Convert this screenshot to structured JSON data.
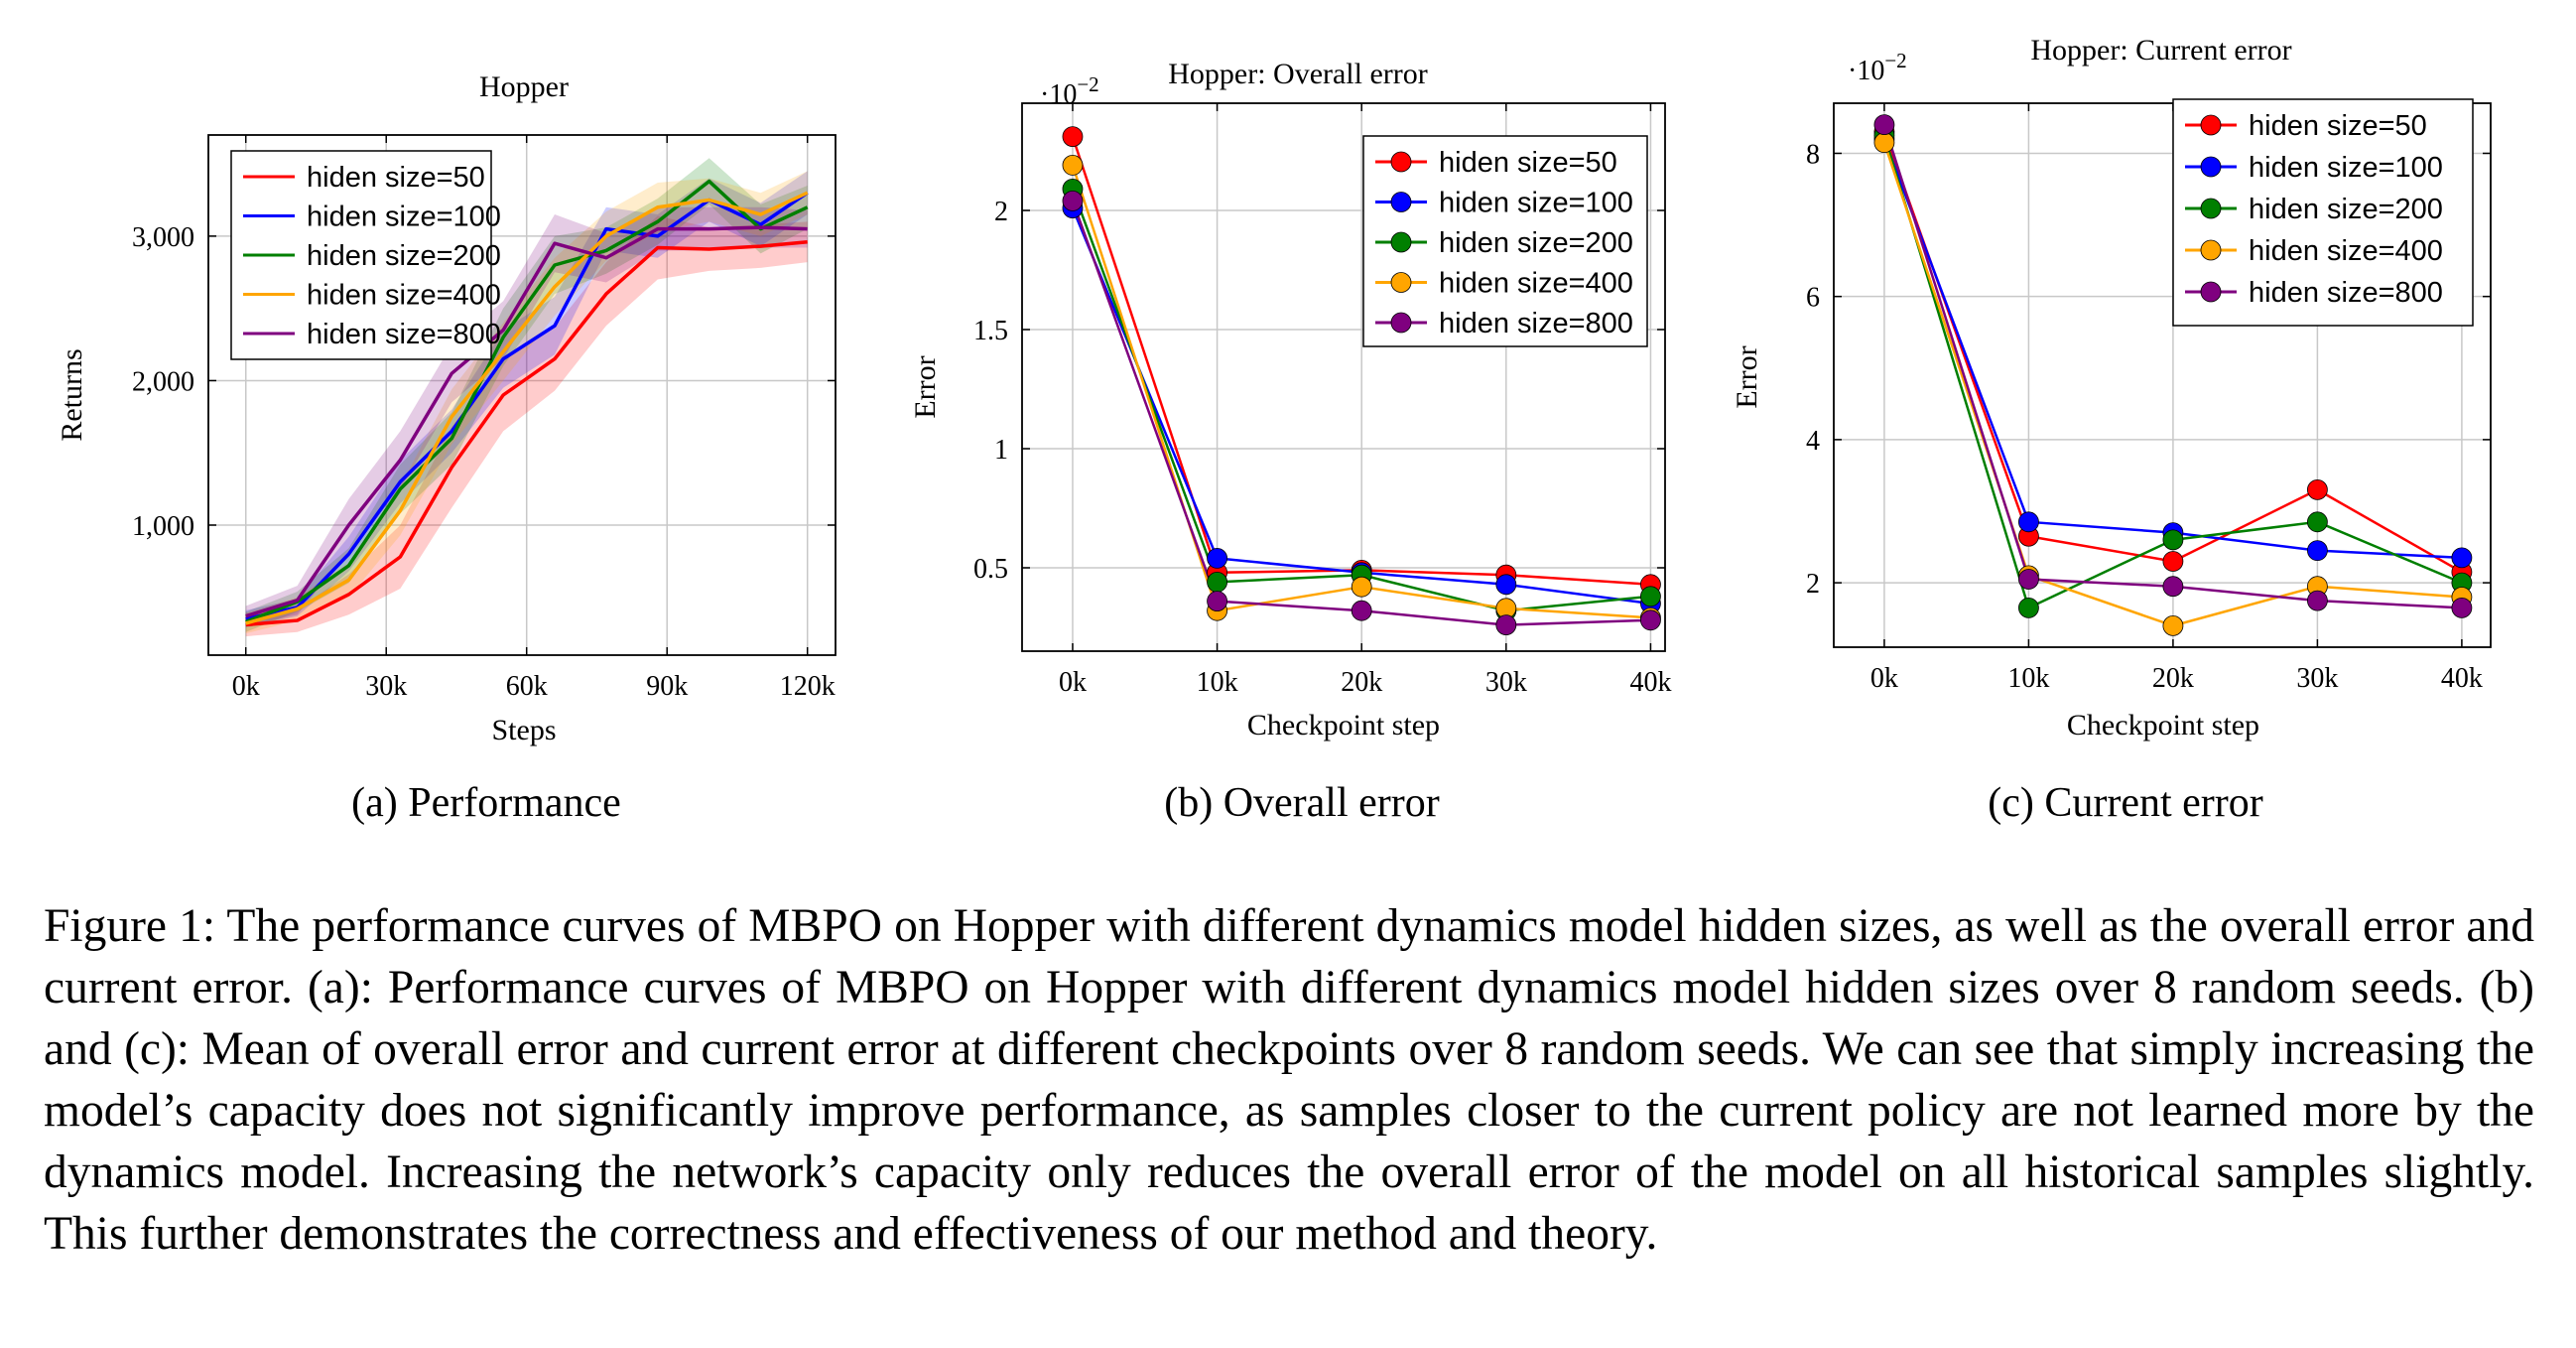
{
  "chart_data": [
    {
      "type": "line",
      "title": "Hopper",
      "xlabel": "Steps",
      "ylabel": "Returns",
      "subcaption": "(a) Performance",
      "xlim": [
        -8000,
        126000
      ],
      "ylim": [
        100,
        3700
      ],
      "xticks": [
        0,
        30000,
        60000,
        90000,
        120000
      ],
      "xticklabels": [
        "0k",
        "30k",
        "60k",
        "90k",
        "120k"
      ],
      "yticks": [
        1000,
        2000,
        3000
      ],
      "yticklabels": [
        "1,000",
        "2,000",
        "3,000"
      ],
      "grid": true,
      "legend_position": "top-left",
      "x": [
        0,
        11000,
        22000,
        33000,
        44000,
        55000,
        66000,
        77000,
        88000,
        99000,
        110000,
        120000
      ],
      "series": [
        {
          "name": "hiden size=50",
          "color": "#ff0000",
          "values": [
            310,
            340,
            520,
            780,
            1400,
            1900,
            2150,
            2600,
            2920,
            2910,
            2930,
            2960
          ],
          "lower": [
            230,
            260,
            380,
            560,
            1120,
            1650,
            1930,
            2380,
            2700,
            2760,
            2780,
            2820
          ],
          "upper": [
            390,
            420,
            660,
            1000,
            1680,
            2150,
            2370,
            2820,
            3140,
            3060,
            3080,
            3100
          ]
        },
        {
          "name": "hiden size=100",
          "color": "#0000ff",
          "values": [
            350,
            430,
            800,
            1300,
            1650,
            2150,
            2380,
            3050,
            3000,
            3250,
            3080,
            3300
          ],
          "lower": [
            290,
            370,
            680,
            1150,
            1500,
            1950,
            2180,
            2900,
            2850,
            3100,
            2930,
            3150
          ],
          "upper": [
            410,
            490,
            920,
            1450,
            1800,
            2350,
            2580,
            3200,
            3150,
            3400,
            3230,
            3450
          ]
        },
        {
          "name": "hiden size=200",
          "color": "#007f00",
          "values": [
            330,
            470,
            720,
            1250,
            1600,
            2300,
            2800,
            2900,
            3100,
            3380,
            3050,
            3200
          ],
          "lower": [
            260,
            400,
            600,
            1080,
            1420,
            2100,
            2600,
            2740,
            2940,
            3220,
            2880,
            3050
          ],
          "upper": [
            400,
            540,
            840,
            1420,
            1780,
            2500,
            3000,
            3060,
            3260,
            3540,
            3220,
            3350
          ]
        },
        {
          "name": "hiden size=400",
          "color": "#ffa500",
          "values": [
            320,
            420,
            620,
            1100,
            1750,
            2200,
            2650,
            3000,
            3200,
            3250,
            3150,
            3300
          ],
          "lower": [
            250,
            340,
            500,
            930,
            1560,
            2000,
            2450,
            2830,
            3030,
            3100,
            3000,
            3150
          ],
          "upper": [
            390,
            500,
            740,
            1270,
            1940,
            2400,
            2850,
            3170,
            3370,
            3400,
            3300,
            3450
          ]
        },
        {
          "name": "hiden size=800",
          "color": "#7f007f",
          "values": [
            370,
            480,
            1000,
            1450,
            2050,
            2350,
            2950,
            2850,
            3050,
            3050,
            3060,
            3050
          ],
          "lower": [
            300,
            380,
            820,
            1250,
            1850,
            2150,
            2750,
            2680,
            2900,
            2900,
            2920,
            2920
          ],
          "upper": [
            440,
            580,
            1180,
            1650,
            2250,
            2550,
            3150,
            3020,
            3200,
            3200,
            3200,
            3180
          ]
        }
      ]
    },
    {
      "type": "line",
      "title": "Hopper: Overall error",
      "xlabel": "Checkpoint step",
      "ylabel": "Error",
      "subcaption": "(b) Overall error",
      "multiplier": "·10",
      "multiplier_exp": "−2",
      "xlim": [
        -0.35,
        4.1
      ],
      "ylim": [
        0.15,
        2.45
      ],
      "xticks": [
        0,
        1,
        2,
        3,
        4
      ],
      "xticklabels": [
        "0k",
        "10k",
        "20k",
        "30k",
        "40k"
      ],
      "yticks": [
        0.5,
        1,
        1.5,
        2
      ],
      "yticklabels": [
        "0.5",
        "1",
        "1.5",
        "2"
      ],
      "grid": true,
      "legend_position": "top-right",
      "x": [
        0,
        1,
        2,
        3,
        4
      ],
      "series": [
        {
          "name": "hiden size=50",
          "color": "#ff0000",
          "values": [
            2.31,
            0.48,
            0.49,
            0.47,
            0.43
          ]
        },
        {
          "name": "hiden size=100",
          "color": "#0000ff",
          "values": [
            2.01,
            0.54,
            0.48,
            0.43,
            0.35
          ]
        },
        {
          "name": "hiden size=200",
          "color": "#007f00",
          "values": [
            2.09,
            0.44,
            0.47,
            0.32,
            0.38
          ]
        },
        {
          "name": "hiden size=400",
          "color": "#ffa500",
          "values": [
            2.19,
            0.32,
            0.42,
            0.33,
            0.29
          ]
        },
        {
          "name": "hiden size=800",
          "color": "#7f007f",
          "values": [
            2.04,
            0.36,
            0.32,
            0.26,
            0.28
          ]
        }
      ]
    },
    {
      "type": "line",
      "title": "Hopper: Current error",
      "xlabel": "Checkpoint step",
      "ylabel": "Error",
      "subcaption": "(c) Current error",
      "multiplier": "·10",
      "multiplier_exp": "−2",
      "xlim": [
        -0.35,
        4.2
      ],
      "ylim": [
        1.1,
        8.7
      ],
      "xticks": [
        0,
        1,
        2,
        3,
        4
      ],
      "xticklabels": [
        "0k",
        "10k",
        "20k",
        "30k",
        "40k"
      ],
      "yticks": [
        2,
        4,
        6,
        8
      ],
      "yticklabels": [
        "2",
        "4",
        "6",
        "8"
      ],
      "grid": true,
      "legend_position": "top-right",
      "x": [
        0,
        1,
        2,
        3,
        4
      ],
      "series": [
        {
          "name": "hiden size=50",
          "color": "#ff0000",
          "values": [
            8.3,
            2.65,
            2.3,
            3.3,
            2.15
          ]
        },
        {
          "name": "hiden size=100",
          "color": "#0000ff",
          "values": [
            8.2,
            2.85,
            2.7,
            2.45,
            2.35
          ]
        },
        {
          "name": "hiden size=200",
          "color": "#007f00",
          "values": [
            8.25,
            1.65,
            2.6,
            2.85,
            2.0
          ]
        },
        {
          "name": "hiden size=400",
          "color": "#ffa500",
          "values": [
            8.15,
            2.1,
            1.4,
            1.95,
            1.8
          ]
        },
        {
          "name": "hiden size=800",
          "color": "#7f007f",
          "values": [
            8.4,
            2.05,
            1.95,
            1.75,
            1.65
          ]
        }
      ]
    }
  ],
  "caption": {
    "text": "Figure 1: The performance curves of MBPO on Hopper with different dynamics model hidden sizes, as well as the overall error and current error. (a): Performance curves of MBPO on Hopper with different dynamics model hidden sizes over 8 random seeds. (b) and (c): Mean of overall error and current error at different checkpoints over 8 random seeds. We can see that simply increasing the model’s capacity does not significantly improve performance, as samples closer to the current policy are not learned more by the dynamics model. Increasing the network’s capacity only reduces the overall error of the model on all historical samples slightly. This further demonstrates the correctness and effectiveness of our method and theory."
  }
}
